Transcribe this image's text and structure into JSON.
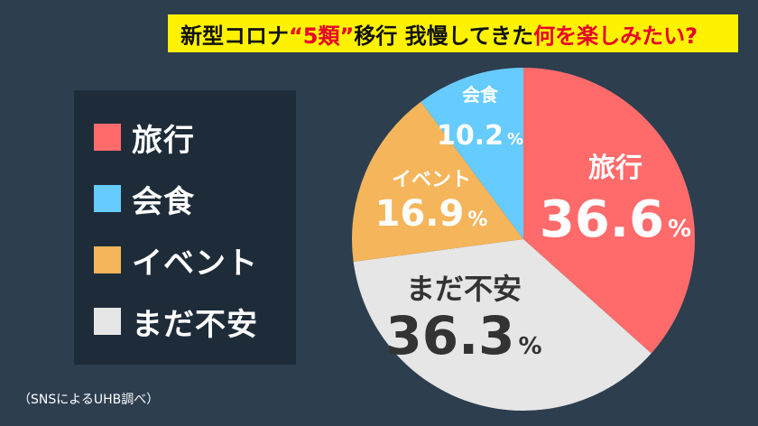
{
  "title": {
    "part1": "新型コロナ",
    "part2": "“5類”",
    "part3": "移行 我慢してきた",
    "part4": "何を楽しみたい?"
  },
  "legend": [
    {
      "label": "旅行",
      "color": "#ff6b6b"
    },
    {
      "label": "会食",
      "color": "#66ccff"
    },
    {
      "label": "イベント",
      "color": "#f5b55a"
    },
    {
      "label": "まだ不安",
      "color": "#e6e6e6"
    }
  ],
  "source_note": "（SNSによるUHB調べ）",
  "percent_sign": "%",
  "chart_data": {
    "type": "pie",
    "title": "新型コロナ“5類”移行 我慢してきた何を楽しみたい?",
    "slices": [
      {
        "label": "旅行",
        "value": 36.6,
        "display": "36.6",
        "color": "#ff6b6b"
      },
      {
        "label": "まだ不安",
        "value": 36.3,
        "display": "36.3",
        "color": "#e6e6e6"
      },
      {
        "label": "イベント",
        "value": 16.9,
        "display": "16.9",
        "color": "#f5b55a"
      },
      {
        "label": "会食",
        "value": 10.2,
        "display": "10.2",
        "color": "#66ccff"
      }
    ],
    "start": "12 o'clock",
    "direction": "clockwise",
    "legend_position": "left",
    "source": "（SNSによるUHB調べ）"
  }
}
